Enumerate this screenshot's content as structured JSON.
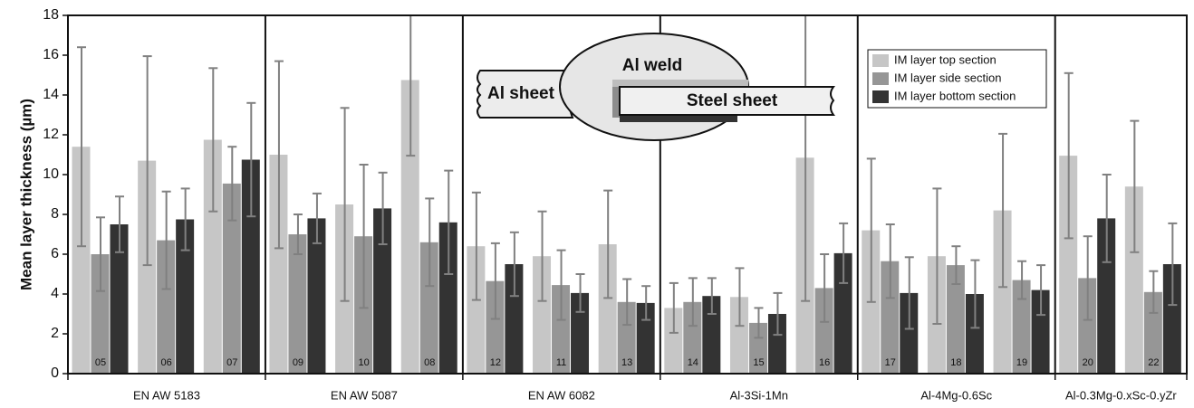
{
  "chart_data": {
    "type": "bar",
    "ylabel": "Mean layer thickness (µm)",
    "ylim": [
      0,
      18
    ],
    "yticks": [
      0,
      2,
      4,
      6,
      8,
      10,
      12,
      14,
      16,
      18
    ],
    "legend": "upper right",
    "groups": [
      {
        "label": "EN AW 5183",
        "categories": [
          "05",
          "06",
          "07"
        ]
      },
      {
        "label": "EN AW 5087",
        "categories": [
          "09",
          "10",
          "08"
        ]
      },
      {
        "label": "EN AW 6082",
        "categories": [
          "12",
          "11",
          "13"
        ]
      },
      {
        "label": "Al-3Si-1Mn",
        "categories": [
          "14",
          "15",
          "16"
        ]
      },
      {
        "label": "Al-4Mg-0.6Sc",
        "categories": [
          "17",
          "18",
          "19"
        ]
      },
      {
        "label": "Al-0.3Mg-0.xSc-0.yZr",
        "categories": [
          "20",
          "22"
        ]
      }
    ],
    "series": [
      {
        "name": "IM layer top section",
        "color": "#c6c6c6",
        "values": [
          11.4,
          10.7,
          11.75,
          11.0,
          8.5,
          14.75,
          6.4,
          5.9,
          6.5,
          3.3,
          3.85,
          10.85,
          7.2,
          5.9,
          8.2,
          10.95,
          9.4
        ],
        "errors": [
          5.0,
          5.25,
          3.6,
          4.7,
          4.85,
          3.8,
          2.7,
          2.25,
          2.7,
          1.25,
          1.45,
          7.2,
          3.6,
          3.4,
          3.85,
          4.15,
          3.3
        ]
      },
      {
        "name": "IM layer side section",
        "color": "#969696",
        "values": [
          6.0,
          6.7,
          9.55,
          7.0,
          6.9,
          6.6,
          4.65,
          4.45,
          3.6,
          3.6,
          2.55,
          4.3,
          5.65,
          5.45,
          4.7,
          4.8,
          4.1
        ],
        "errors": [
          1.85,
          2.45,
          1.85,
          1.0,
          3.6,
          2.2,
          1.9,
          1.75,
          1.15,
          1.2,
          0.75,
          1.7,
          1.85,
          0.95,
          0.95,
          2.1,
          1.05
        ]
      },
      {
        "name": "IM layer bottom section",
        "color": "#333333",
        "values": [
          7.5,
          7.75,
          10.75,
          7.8,
          8.3,
          7.6,
          5.5,
          4.05,
          3.55,
          3.9,
          3.0,
          6.05,
          4.05,
          4.0,
          4.2,
          7.8,
          5.5
        ],
        "errors": [
          1.4,
          1.55,
          2.85,
          1.25,
          1.8,
          2.6,
          1.6,
          0.95,
          0.85,
          0.9,
          1.05,
          1.5,
          1.8,
          1.7,
          1.25,
          2.2,
          2.05
        ]
      }
    ],
    "annotations": [
      "Al weld",
      "Al sheet",
      "Steel sheet"
    ]
  }
}
